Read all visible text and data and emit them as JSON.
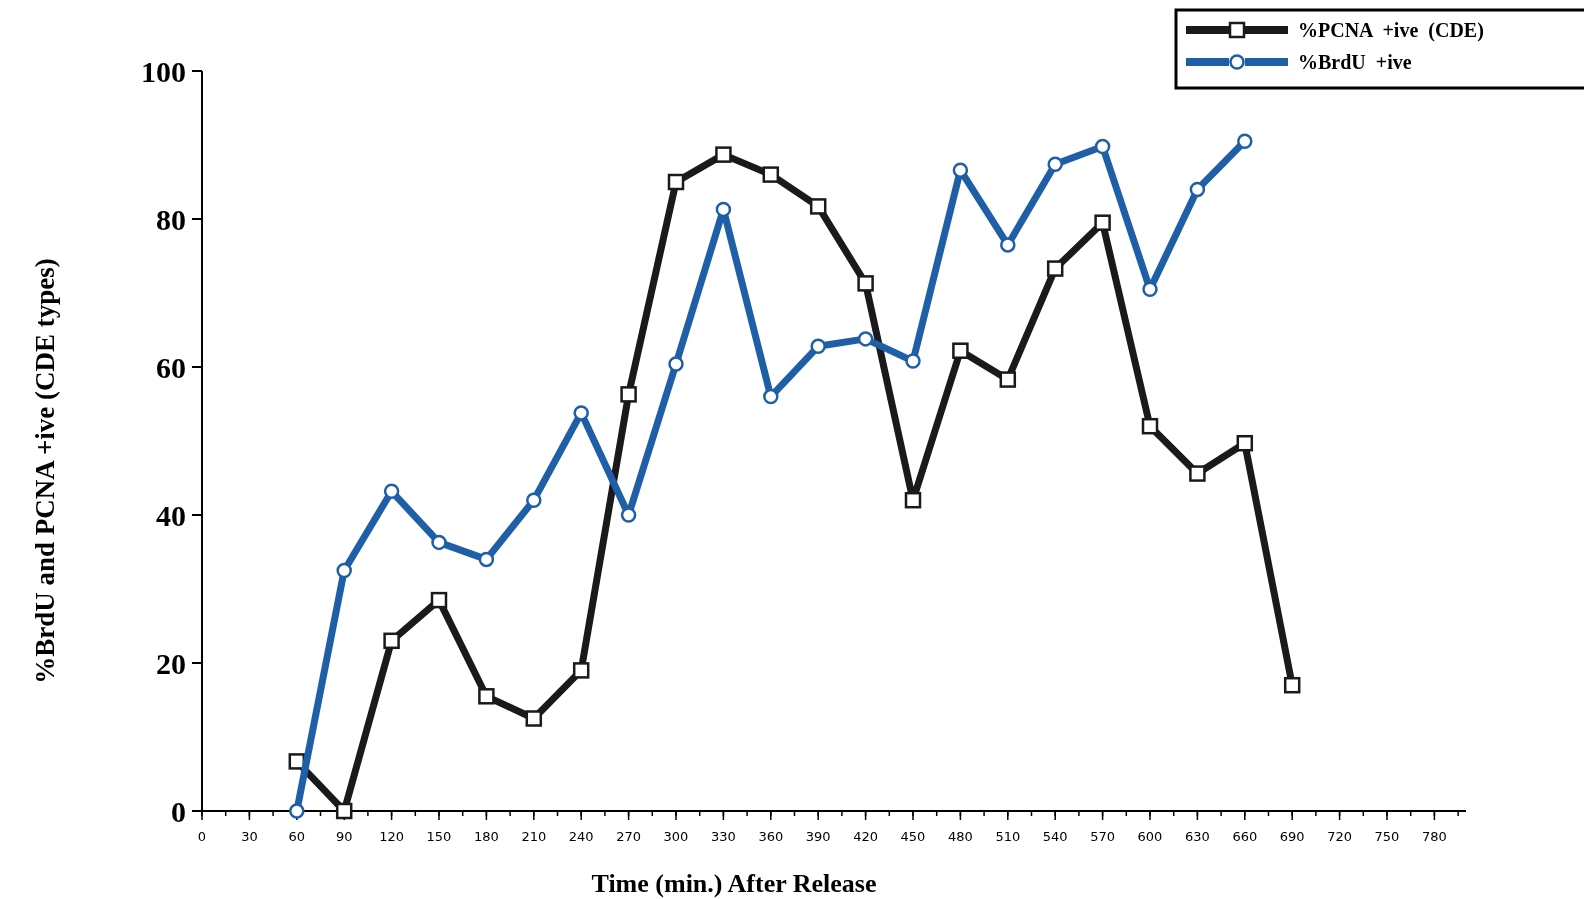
{
  "chart_data": {
    "type": "line",
    "xlabel": "Time (min.) After Release",
    "ylabel": "%BrdU and PCNA +ive (CDE types)",
    "x": [
      60,
      90,
      120,
      150,
      180,
      210,
      240,
      270,
      300,
      330,
      360,
      390,
      420,
      450,
      480,
      510,
      540,
      570,
      600,
      630,
      660,
      690
    ],
    "series": [
      {
        "name": "%PCNA  +ive  (CDE)",
        "color": "#1a1a1a",
        "marker": "square",
        "values": [
          6.7,
          0,
          23,
          28.5,
          15.5,
          12.5,
          19,
          56.3,
          85,
          88.7,
          86,
          81.7,
          71.3,
          42,
          62.2,
          58.3,
          73.3,
          79.5,
          52,
          45.6,
          49.7,
          17
        ]
      },
      {
        "name": "%BrdU  +ive",
        "color": "#1f5fa8",
        "marker": "circle",
        "values": [
          0,
          32.5,
          43.2,
          36.3,
          34,
          42,
          53.8,
          40,
          60.4,
          81.3,
          56,
          62.8,
          63.8,
          60.8,
          86.6,
          76.5,
          87.4,
          89.8,
          70.5,
          84,
          90.5,
          null
        ]
      }
    ],
    "xlim": [
      0,
      800
    ],
    "xticks": [
      0,
      30,
      60,
      90,
      120,
      150,
      180,
      210,
      240,
      270,
      300,
      330,
      360,
      390,
      420,
      450,
      480,
      510,
      540,
      570,
      600,
      630,
      660,
      690,
      720,
      750,
      780
    ],
    "ylim": [
      0,
      100
    ],
    "yticks": [
      0,
      20,
      40,
      60,
      80,
      100
    ],
    "grid": false,
    "legend": "top right",
    "line_style": "solid"
  }
}
